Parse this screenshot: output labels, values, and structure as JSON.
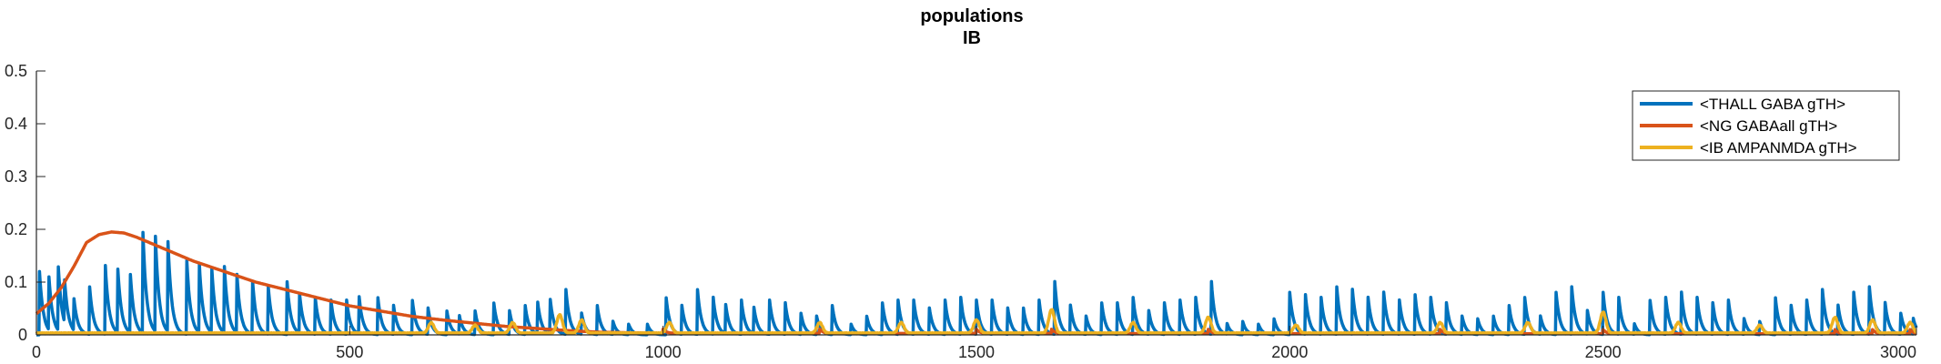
{
  "chart_data": {
    "type": "line",
    "title": [
      "populations",
      "IB"
    ],
    "xlabel": "",
    "ylabel": "",
    "xlim": [
      0,
      3000
    ],
    "ylim": [
      0,
      0.5
    ],
    "xticks": [
      0,
      500,
      1000,
      1500,
      2000,
      2500,
      3000
    ],
    "xtick_labels": [
      "0",
      "500",
      "1000",
      "1500",
      "2000",
      "2500",
      "3000"
    ],
    "yticks": [
      0,
      0.1,
      0.2,
      0.3,
      0.4,
      0.5
    ],
    "ytick_labels": [
      "0",
      "0.1",
      "0.2",
      "0.3",
      "0.4",
      "0.5"
    ],
    "grid": false,
    "legend_position": "top-right",
    "series": [
      {
        "name": "<THALL GABA gTH>",
        "color": "#0072BD",
        "baseline_decay_ms": 150,
        "spike_decay_ms": 6,
        "spikes": [
          [
            5,
            0.12
          ],
          [
            20,
            0.1
          ],
          [
            35,
            0.12
          ],
          [
            45,
            0.08
          ],
          [
            60,
            0.06
          ],
          [
            85,
            0.09
          ],
          [
            110,
            0.13
          ],
          [
            130,
            0.12
          ],
          [
            150,
            0.11
          ],
          [
            170,
            0.19
          ],
          [
            190,
            0.18
          ],
          [
            210,
            0.17
          ],
          [
            240,
            0.14
          ],
          [
            260,
            0.13
          ],
          [
            280,
            0.12
          ],
          [
            300,
            0.125
          ],
          [
            320,
            0.11
          ],
          [
            345,
            0.1
          ],
          [
            370,
            0.09
          ],
          [
            400,
            0.1
          ],
          [
            420,
            0.075
          ],
          [
            445,
            0.07
          ],
          [
            470,
            0.065
          ],
          [
            495,
            0.065
          ],
          [
            515,
            0.07
          ],
          [
            545,
            0.07
          ],
          [
            570,
            0.055
          ],
          [
            600,
            0.065
          ],
          [
            625,
            0.05
          ],
          [
            655,
            0.045
          ],
          [
            675,
            0.035
          ],
          [
            700,
            0.045
          ],
          [
            730,
            0.06
          ],
          [
            755,
            0.045
          ],
          [
            780,
            0.055
          ],
          [
            800,
            0.06
          ],
          [
            820,
            0.065
          ],
          [
            845,
            0.085
          ],
          [
            870,
            0.04
          ],
          [
            895,
            0.055
          ],
          [
            920,
            0.025
          ],
          [
            945,
            0.02
          ],
          [
            975,
            0.02
          ],
          [
            1005,
            0.07
          ],
          [
            1030,
            0.055
          ],
          [
            1055,
            0.085
          ],
          [
            1080,
            0.07
          ],
          [
            1100,
            0.055
          ],
          [
            1125,
            0.065
          ],
          [
            1145,
            0.05
          ],
          [
            1170,
            0.065
          ],
          [
            1195,
            0.06
          ],
          [
            1220,
            0.04
          ],
          [
            1245,
            0.035
          ],
          [
            1270,
            0.055
          ],
          [
            1300,
            0.02
          ],
          [
            1325,
            0.035
          ],
          [
            1350,
            0.06
          ],
          [
            1375,
            0.065
          ],
          [
            1400,
            0.065
          ],
          [
            1425,
            0.05
          ],
          [
            1450,
            0.065
          ],
          [
            1475,
            0.07
          ],
          [
            1500,
            0.065
          ],
          [
            1525,
            0.065
          ],
          [
            1550,
            0.05
          ],
          [
            1575,
            0.05
          ],
          [
            1600,
            0.065
          ],
          [
            1625,
            0.1
          ],
          [
            1650,
            0.055
          ],
          [
            1675,
            0.035
          ],
          [
            1700,
            0.06
          ],
          [
            1725,
            0.06
          ],
          [
            1750,
            0.07
          ],
          [
            1775,
            0.045
          ],
          [
            1800,
            0.06
          ],
          [
            1825,
            0.065
          ],
          [
            1850,
            0.07
          ],
          [
            1875,
            0.1
          ],
          [
            1900,
            0.02
          ],
          [
            1925,
            0.025
          ],
          [
            1950,
            0.02
          ],
          [
            1975,
            0.03
          ],
          [
            2000,
            0.08
          ],
          [
            2025,
            0.075
          ],
          [
            2050,
            0.07
          ],
          [
            2075,
            0.09
          ],
          [
            2100,
            0.085
          ],
          [
            2125,
            0.07
          ],
          [
            2150,
            0.08
          ],
          [
            2175,
            0.065
          ],
          [
            2200,
            0.075
          ],
          [
            2225,
            0.07
          ],
          [
            2250,
            0.06
          ],
          [
            2275,
            0.035
          ],
          [
            2300,
            0.03
          ],
          [
            2325,
            0.035
          ],
          [
            2350,
            0.055
          ],
          [
            2375,
            0.07
          ],
          [
            2400,
            0.035
          ],
          [
            2425,
            0.08
          ],
          [
            2450,
            0.09
          ],
          [
            2475,
            0.045
          ],
          [
            2500,
            0.08
          ],
          [
            2525,
            0.07
          ],
          [
            2550,
            0.02
          ],
          [
            2575,
            0.065
          ],
          [
            2600,
            0.07
          ],
          [
            2625,
            0.08
          ],
          [
            2650,
            0.07
          ],
          [
            2675,
            0.06
          ],
          [
            2700,
            0.065
          ],
          [
            2725,
            0.03
          ],
          [
            2750,
            0.025
          ],
          [
            2775,
            0.07
          ],
          [
            2800,
            0.055
          ],
          [
            2825,
            0.065
          ],
          [
            2850,
            0.085
          ],
          [
            2875,
            0.055
          ],
          [
            2900,
            0.08
          ],
          [
            2925,
            0.09
          ],
          [
            2950,
            0.06
          ],
          [
            2975,
            0.04
          ],
          [
            2995,
            0.03
          ]
        ]
      },
      {
        "name": "<NG GABAall gTH>",
        "color": "#D95319",
        "envelope": [
          [
            0,
            0.04
          ],
          [
            20,
            0.06
          ],
          [
            40,
            0.09
          ],
          [
            60,
            0.13
          ],
          [
            80,
            0.175
          ],
          [
            100,
            0.19
          ],
          [
            120,
            0.195
          ],
          [
            140,
            0.193
          ],
          [
            160,
            0.185
          ],
          [
            180,
            0.175
          ],
          [
            200,
            0.165
          ],
          [
            250,
            0.14
          ],
          [
            300,
            0.12
          ],
          [
            350,
            0.1
          ],
          [
            400,
            0.085
          ],
          [
            450,
            0.07
          ],
          [
            500,
            0.055
          ],
          [
            550,
            0.045
          ],
          [
            600,
            0.035
          ],
          [
            650,
            0.028
          ],
          [
            700,
            0.022
          ],
          [
            750,
            0.016
          ],
          [
            800,
            0.012
          ],
          [
            850,
            0.008
          ],
          [
            900,
            0.005
          ],
          [
            1000,
            0.003
          ],
          [
            3000,
            0.002
          ]
        ],
        "bumps": [
          1000,
          1250,
          1500,
          1620,
          1870,
          2240,
          2500,
          2870,
          2930,
          2990
        ]
      },
      {
        "name": "<IB AMPANMDA gTH>",
        "color": "#EDB120",
        "bumps": [
          [
            630,
            0.02
          ],
          [
            700,
            0.015
          ],
          [
            760,
            0.02
          ],
          [
            835,
            0.035
          ],
          [
            870,
            0.025
          ],
          [
            1010,
            0.02
          ],
          [
            1250,
            0.02
          ],
          [
            1380,
            0.02
          ],
          [
            1500,
            0.025
          ],
          [
            1620,
            0.045
          ],
          [
            1750,
            0.02
          ],
          [
            1870,
            0.03
          ],
          [
            2010,
            0.015
          ],
          [
            2240,
            0.02
          ],
          [
            2380,
            0.02
          ],
          [
            2500,
            0.04
          ],
          [
            2620,
            0.02
          ],
          [
            2750,
            0.015
          ],
          [
            2870,
            0.03
          ],
          [
            2930,
            0.025
          ],
          [
            2990,
            0.02
          ]
        ]
      }
    ]
  }
}
